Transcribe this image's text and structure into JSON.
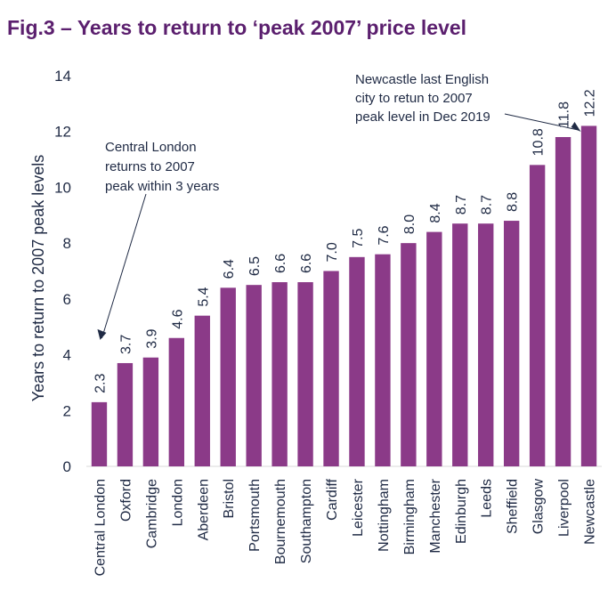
{
  "chart_data": {
    "type": "bar",
    "title": "Fig.3 – Years to return to ‘peak 2007’ price level",
    "xlabel": "",
    "ylabel": "Years to return to 2007 peak levels",
    "ylim": [
      0,
      14
    ],
    "yticks": [
      0,
      2,
      4,
      6,
      8,
      10,
      12,
      14
    ],
    "grid": false,
    "bar_color": "#8b3a88",
    "categories": [
      "Central London",
      "Oxford",
      "Cambridge",
      "London",
      "Aberdeen",
      "Bristol",
      "Portsmouth",
      "Bournemouth",
      "Southampton",
      "Cardiff",
      "Leicester",
      "Nottingham",
      "Birmingham",
      "Manchester",
      "Edinburgh",
      "Leeds",
      "Sheffield",
      "Glasgow",
      "Liverpool",
      "Newcastle"
    ],
    "values": [
      2.3,
      3.7,
      3.9,
      4.6,
      5.4,
      6.4,
      6.5,
      6.6,
      6.6,
      7.0,
      7.5,
      7.6,
      8.0,
      8.4,
      8.7,
      8.7,
      8.8,
      10.8,
      11.8,
      12.2
    ],
    "value_labels": [
      "2.3",
      "3.7",
      "3.9",
      "4.6",
      "5.4",
      "6.4",
      "6.5",
      "6.6",
      "6.6",
      "7.0",
      "7.5",
      "7.6",
      "8.0",
      "8.4",
      "8.7",
      "8.7",
      "8.8",
      "10.8",
      "11.8",
      "12.2"
    ],
    "annotations": [
      {
        "lines": [
          "Central London",
          "returns to 2007",
          "peak within 3 years"
        ],
        "target": "Central London"
      },
      {
        "lines": [
          "Newcastle last English",
          "city to retun to 2007",
          "peak level in Dec 2019"
        ],
        "target": "Newcastle"
      }
    ]
  }
}
